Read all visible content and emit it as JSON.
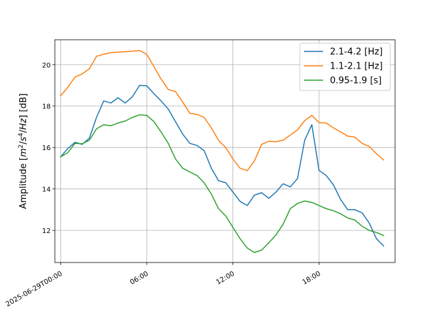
{
  "chart_data": {
    "type": "line",
    "title": "",
    "xlabel": "",
    "ylabel": "Amplitude [m²/s⁴/Hz] [dB]",
    "ylabel_parts": {
      "pre": "Amplitude [",
      "m": "m",
      "m_sup": "2",
      "mid": "/",
      "s": "s",
      "s_sup": "4",
      "post": "/",
      "hz": "Hz",
      "tail": "] [dB]"
    },
    "xlim": [
      -0.4,
      23.3
    ],
    "ylim": [
      10.45,
      21.2
    ],
    "grid": true,
    "legend_position": "top-right",
    "x_ticks": [
      {
        "value": 0,
        "label": "2025-06-29T00:00"
      },
      {
        "value": 6,
        "label": "06:00"
      },
      {
        "value": 12,
        "label": "12:00"
      },
      {
        "value": 18,
        "label": "18:00"
      }
    ],
    "y_ticks": [
      12,
      14,
      16,
      18,
      20
    ],
    "x": [
      0,
      0.5,
      1,
      1.5,
      2,
      2.5,
      3,
      3.5,
      4,
      4.5,
      5,
      5.5,
      6,
      6.5,
      7,
      7.5,
      8,
      8.5,
      9,
      9.5,
      10,
      10.5,
      11,
      11.5,
      12,
      12.5,
      13,
      13.5,
      14,
      14.5,
      15,
      15.5,
      16,
      16.5,
      17,
      17.5,
      18,
      18.5,
      19,
      19.5,
      20,
      20.5,
      21,
      21.5,
      22,
      22.5
    ],
    "series": [
      {
        "name": "2.1-4.2 [Hz]",
        "color": "#1f77b4",
        "values": [
          15.55,
          15.95,
          16.25,
          16.15,
          16.45,
          17.45,
          18.25,
          18.15,
          18.4,
          18.15,
          18.45,
          19.0,
          18.98,
          18.6,
          18.25,
          17.85,
          17.25,
          16.65,
          16.2,
          16.1,
          15.85,
          15.0,
          14.4,
          14.3,
          13.85,
          13.4,
          13.2,
          13.7,
          13.82,
          13.55,
          13.85,
          14.25,
          14.1,
          14.5,
          16.35,
          17.1,
          14.9,
          14.65,
          14.2,
          13.5,
          13.0,
          13.0,
          12.85,
          12.35,
          11.6,
          11.25
        ]
      },
      {
        "name": "1.1-2.1 [Hz]",
        "color": "#ff7f0e",
        "values": [
          18.5,
          18.9,
          19.4,
          19.55,
          19.8,
          20.4,
          20.5,
          20.58,
          20.6,
          20.62,
          20.65,
          20.68,
          20.5,
          19.9,
          19.3,
          18.8,
          18.7,
          18.2,
          17.65,
          17.6,
          17.45,
          16.95,
          16.35,
          16.0,
          15.45,
          15.0,
          14.88,
          15.35,
          16.15,
          16.3,
          16.28,
          16.35,
          16.6,
          16.85,
          17.3,
          17.55,
          17.2,
          17.18,
          16.95,
          16.75,
          16.55,
          16.5,
          16.2,
          16.05,
          15.7,
          15.4
        ]
      },
      {
        "name": "0.95-1.9 [s]",
        "color": "#2ca02c",
        "values": [
          15.55,
          15.75,
          16.2,
          16.18,
          16.35,
          16.9,
          17.1,
          17.05,
          17.18,
          17.28,
          17.45,
          17.58,
          17.55,
          17.25,
          16.75,
          16.2,
          15.45,
          15.0,
          14.82,
          14.65,
          14.3,
          13.75,
          13.05,
          12.7,
          12.15,
          11.6,
          11.15,
          10.93,
          11.05,
          11.4,
          11.78,
          12.3,
          13.05,
          13.3,
          13.42,
          13.35,
          13.2,
          13.05,
          12.95,
          12.8,
          12.6,
          12.5,
          12.2,
          12.0,
          11.9,
          11.75
        ]
      }
    ]
  }
}
